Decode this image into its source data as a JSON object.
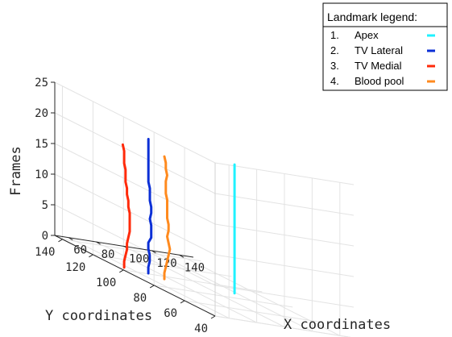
{
  "chart_data": {
    "type": "line3d",
    "title": "",
    "xlabel": "X coordinates",
    "ylabel": "Y coordinates",
    "zlabel": "Frames",
    "xlim": [
      50,
      150
    ],
    "ylim": [
      40,
      145
    ],
    "zlim": [
      0,
      25
    ],
    "xticks": [
      "60",
      "80",
      "100",
      "120",
      "140"
    ],
    "yticks": [
      "40",
      "60",
      "80",
      "100",
      "120",
      "140"
    ],
    "zticks": [
      "0",
      "5",
      "10",
      "15",
      "20",
      "25"
    ],
    "grid": true,
    "legend": {
      "title": "Landmark legend:",
      "placement": "top-right",
      "entries": [
        {
          "num": "1.",
          "label": "Apex"
        },
        {
          "num": "2.",
          "label": "TV Lateral"
        },
        {
          "num": "3.",
          "label": "TV Medial"
        },
        {
          "num": "4.",
          "label": "Blood pool"
        }
      ]
    },
    "series": [
      {
        "color": "#1ff2ff",
        "points": [
          [
            118,
            89,
            0
          ],
          [
            118,
            89,
            21
          ]
        ]
      },
      {
        "color": "#0b2fd6",
        "points": [
          [
            69,
            101,
            0
          ],
          [
            69,
            101,
            1
          ],
          [
            70,
            101,
            2
          ],
          [
            70,
            101,
            3
          ],
          [
            69,
            101,
            4
          ],
          [
            69,
            101,
            5
          ],
          [
            70,
            100,
            6
          ],
          [
            70,
            100,
            7
          ],
          [
            70,
            100,
            8
          ],
          [
            69,
            100,
            9
          ],
          [
            70,
            100,
            10
          ],
          [
            70,
            100,
            11
          ],
          [
            69,
            100,
            12
          ],
          [
            69,
            100,
            13
          ],
          [
            69,
            100,
            14
          ],
          [
            68,
            100,
            15
          ],
          [
            68,
            100,
            16
          ],
          [
            68,
            100,
            17
          ],
          [
            68,
            100,
            18
          ],
          [
            68,
            100,
            19
          ],
          [
            68,
            100,
            20
          ],
          [
            68,
            100,
            21
          ],
          [
            68,
            100,
            22
          ]
        ]
      },
      {
        "color": "#ff2a0a",
        "points": [
          [
            56,
            105,
            0
          ],
          [
            56,
            105,
            1
          ],
          [
            57,
            105,
            2
          ],
          [
            58,
            105,
            3
          ],
          [
            58,
            105,
            4
          ],
          [
            59,
            105,
            5
          ],
          [
            60,
            105,
            6
          ],
          [
            60,
            105,
            7
          ],
          [
            60,
            105,
            8
          ],
          [
            60,
            105,
            9
          ],
          [
            59,
            105,
            10
          ],
          [
            59,
            105,
            11
          ],
          [
            58,
            105,
            12
          ],
          [
            58,
            105,
            13
          ],
          [
            57,
            105,
            14
          ],
          [
            57,
            105,
            15
          ],
          [
            57,
            105,
            16
          ],
          [
            56,
            105,
            17
          ],
          [
            56,
            105,
            18
          ],
          [
            56,
            105,
            19
          ],
          [
            55,
            105,
            20
          ]
        ]
      },
      {
        "color": "#ff8a1e",
        "points": [
          [
            74,
            95,
            0
          ],
          [
            74,
            95,
            1
          ],
          [
            75,
            95,
            2
          ],
          [
            76,
            95,
            3
          ],
          [
            77,
            95,
            4
          ],
          [
            78,
            95,
            5
          ],
          [
            77,
            95,
            6
          ],
          [
            76,
            95,
            7
          ],
          [
            77,
            95,
            8
          ],
          [
            77,
            95,
            9
          ],
          [
            76,
            95,
            10
          ],
          [
            76,
            95,
            11
          ],
          [
            76,
            95,
            12
          ],
          [
            76,
            95,
            13
          ],
          [
            75,
            95,
            14
          ],
          [
            75,
            95,
            15
          ],
          [
            75,
            95,
            16
          ],
          [
            76,
            95,
            17
          ],
          [
            75,
            95,
            18
          ],
          [
            75,
            95,
            19
          ],
          [
            74,
            95,
            20
          ]
        ]
      }
    ]
  }
}
